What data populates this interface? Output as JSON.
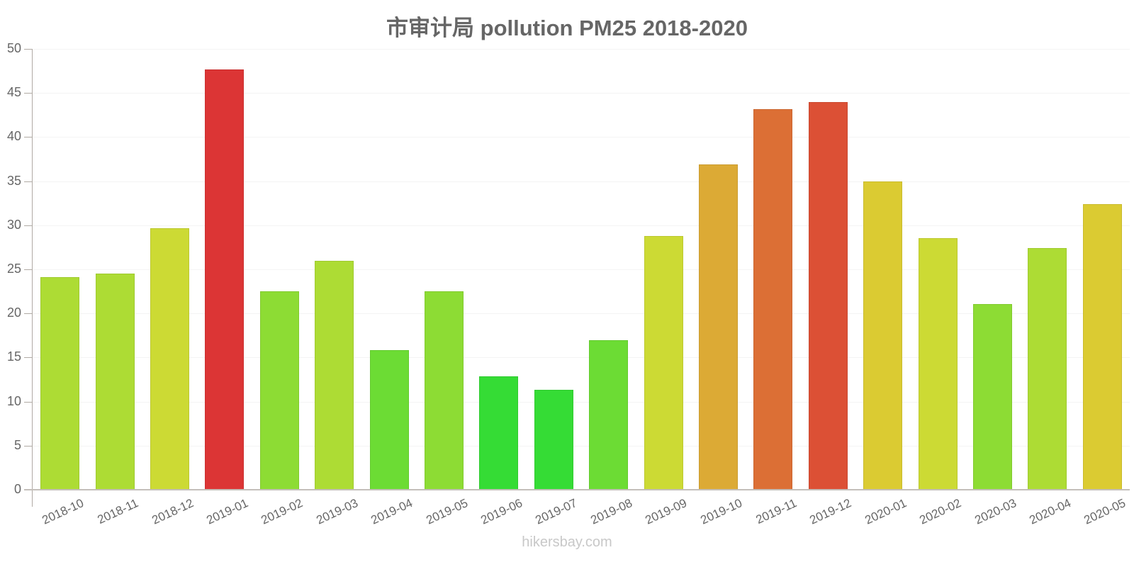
{
  "header": {
    "title": "市审计局 pollution PM25 2018-2020"
  },
  "watermark": "hikersbay.com",
  "chart_data": {
    "type": "bar",
    "title": "市审计局 pollution PM25 2018-2020",
    "xlabel": "",
    "ylabel": "",
    "ylim": [
      0,
      50
    ],
    "yticks": [
      0,
      5,
      10,
      15,
      20,
      25,
      30,
      35,
      40,
      45,
      50
    ],
    "grid": true,
    "legend": null,
    "categories": [
      "2018-10",
      "2018-11",
      "2018-12",
      "2019-01",
      "2019-02",
      "2019-03",
      "2019-04",
      "2019-05",
      "2019-06",
      "2019-07",
      "2019-08",
      "2019-09",
      "2019-10",
      "2019-11",
      "2019-12",
      "2020-01",
      "2020-02",
      "2020-03",
      "2020-04",
      "2020-05"
    ],
    "series": [
      {
        "name": "PM25",
        "values": [
          24.1,
          24.5,
          29.7,
          47.7,
          22.5,
          26.0,
          15.8,
          22.5,
          12.9,
          11.3,
          17.0,
          28.8,
          36.9,
          43.2,
          44.0,
          35.0,
          28.5,
          21.1,
          27.4,
          32.4
        ],
        "colors": [
          "#addc34",
          "#addc34",
          "#ccda34",
          "#dc3535",
          "#8ddc34",
          "#addc34",
          "#6cdc34",
          "#8ddc34",
          "#35dc35",
          "#35dc35",
          "#6cdc34",
          "#ccda34",
          "#dcaa35",
          "#dc6f35",
          "#dc5035",
          "#dbcb32",
          "#ccda34",
          "#8ddc34",
          "#addc34",
          "#dbcb32"
        ]
      }
    ],
    "watermark": "hikersbay.com"
  }
}
